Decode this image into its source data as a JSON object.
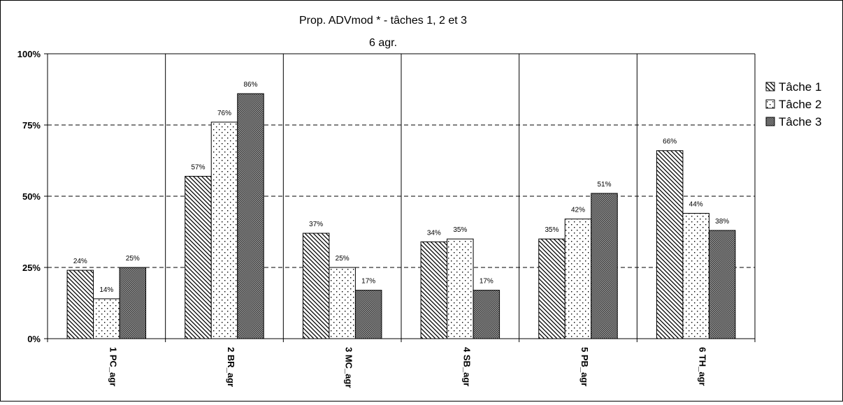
{
  "chart_data": {
    "type": "bar",
    "title": "Prop. ADVmod * - tâches 1, 2 et 3",
    "subtitle": "6 agr.",
    "xlabel": "",
    "ylabel": "",
    "categories": [
      "1 PC_agr",
      "2 BR_agr",
      "3 MC_agr",
      "4 SB_agr",
      "5 PB_agr",
      "6 TH_agr"
    ],
    "series": [
      {
        "name": "Tâche 1",
        "values": [
          0.24,
          0.57,
          0.37,
          0.34,
          0.35,
          0.66
        ],
        "labels": [
          "24%",
          "57%",
          "37%",
          "34%",
          "35%",
          "66%"
        ],
        "pattern": "diagonal-hatch"
      },
      {
        "name": "Tâche 2",
        "values": [
          0.14,
          0.76,
          0.25,
          0.35,
          0.42,
          0.44
        ],
        "labels": [
          "14%",
          "76%",
          "25%",
          "35%",
          "42%",
          "44%"
        ],
        "pattern": "dotted"
      },
      {
        "name": "Tâche 3",
        "values": [
          0.25,
          0.86,
          0.17,
          0.17,
          0.51,
          0.38
        ],
        "labels": [
          "25%",
          "86%",
          "17%",
          "17%",
          "51%",
          "38%"
        ],
        "pattern": "dense-crosshatch"
      }
    ],
    "ylim": [
      0,
      1
    ],
    "yticks": [
      0,
      0.25,
      0.5,
      0.75,
      1
    ],
    "ytick_labels": [
      "0%",
      "25%",
      "50%",
      "75%",
      "100%"
    ],
    "grid": "dashed horizontal",
    "legend_position": "right"
  }
}
